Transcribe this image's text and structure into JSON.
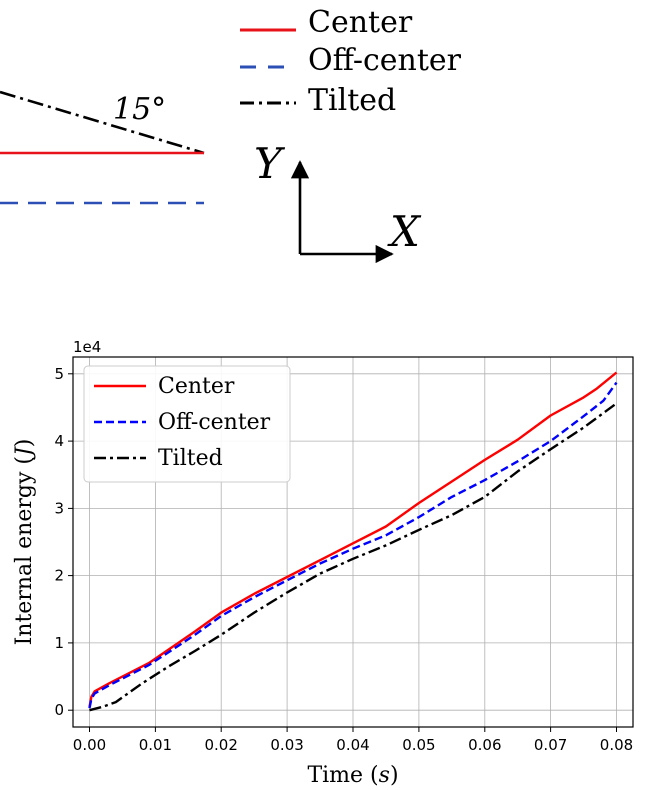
{
  "schematic": {
    "legend": [
      {
        "label": "Center",
        "color": "#e8131a",
        "dash": "solid"
      },
      {
        "label": "Off-center",
        "color": "#2b4fb5",
        "dash": "dashed"
      },
      {
        "label": "Tilted",
        "color": "#000000",
        "dash": "dashdot"
      }
    ],
    "angle_label": "15°",
    "axis_y_label": "Y",
    "axis_x_label": "X"
  },
  "chart_data": {
    "type": "line",
    "xlabel": "Time (s)",
    "xlabel_main": "Time ",
    "xlabel_unit": "s",
    "ylabel": "Internal energy (J)",
    "ylabel_main": "Internal energy ",
    "ylabel_unit": "J",
    "y_multiplier": "1e4",
    "xlim": [
      -0.0025,
      0.0825
    ],
    "ylim": [
      -0.25,
      5.25
    ],
    "x_ticks": [
      0.0,
      0.01,
      0.02,
      0.03,
      0.04,
      0.05,
      0.06,
      0.07,
      0.08
    ],
    "x_tick_labels": [
      "0.00",
      "0.01",
      "0.02",
      "0.03",
      "0.04",
      "0.05",
      "0.06",
      "0.07",
      "0.08"
    ],
    "y_ticks": [
      0,
      1,
      2,
      3,
      4,
      5
    ],
    "y_tick_labels": [
      "0",
      "1",
      "2",
      "3",
      "4",
      "5"
    ],
    "grid": true,
    "legend_position": "top-left",
    "series": [
      {
        "name": "Center",
        "color": "#ff0000",
        "dash": "solid",
        "x": [
          0.0,
          0.0003,
          0.0008,
          0.003,
          0.006,
          0.009,
          0.012,
          0.016,
          0.02,
          0.025,
          0.03,
          0.035,
          0.04,
          0.045,
          0.05,
          0.055,
          0.06,
          0.065,
          0.07,
          0.075,
          0.077,
          0.08
        ],
        "y": [
          0.05,
          0.2,
          0.28,
          0.4,
          0.55,
          0.7,
          0.9,
          1.17,
          1.45,
          1.73,
          1.98,
          2.23,
          2.48,
          2.73,
          3.08,
          3.4,
          3.72,
          4.02,
          4.38,
          4.65,
          4.78,
          5.02
        ]
      },
      {
        "name": "Off-center",
        "color": "#0000ff",
        "dash": "dashed",
        "x": [
          0.0,
          0.0003,
          0.0008,
          0.003,
          0.006,
          0.009,
          0.012,
          0.016,
          0.02,
          0.025,
          0.03,
          0.035,
          0.04,
          0.045,
          0.05,
          0.055,
          0.06,
          0.065,
          0.07,
          0.075,
          0.078,
          0.08
        ],
        "y": [
          0.03,
          0.17,
          0.25,
          0.37,
          0.52,
          0.67,
          0.86,
          1.12,
          1.4,
          1.68,
          1.93,
          2.18,
          2.4,
          2.6,
          2.87,
          3.17,
          3.42,
          3.7,
          4.0,
          4.37,
          4.6,
          4.87
        ]
      },
      {
        "name": "Tilted",
        "color": "#000000",
        "dash": "dashdot",
        "x": [
          0.0,
          0.002,
          0.004,
          0.006,
          0.008,
          0.012,
          0.016,
          0.02,
          0.025,
          0.03,
          0.035,
          0.04,
          0.045,
          0.05,
          0.055,
          0.06,
          0.065,
          0.07,
          0.075,
          0.08
        ],
        "y": [
          0.0,
          0.05,
          0.12,
          0.26,
          0.4,
          0.65,
          0.88,
          1.12,
          1.45,
          1.75,
          2.03,
          2.25,
          2.45,
          2.68,
          2.9,
          3.17,
          3.55,
          3.88,
          4.2,
          4.56
        ]
      }
    ]
  }
}
